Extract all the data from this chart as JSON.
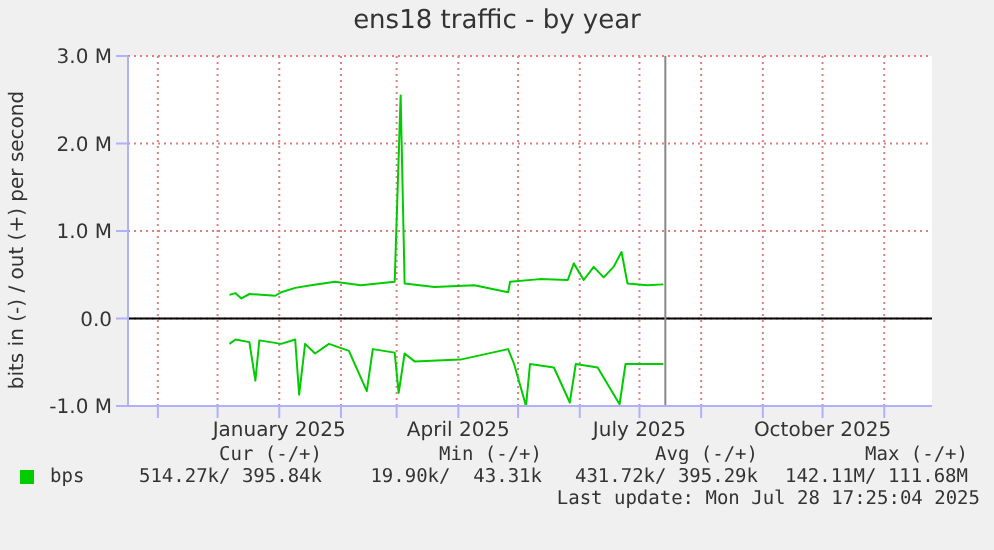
{
  "chart_data": {
    "type": "line",
    "title": "ens18 traffic - by year",
    "ylabel": "bits in (-) / out (+) per second",
    "xlim": [
      "2024-10-17",
      "2025-11-25"
    ],
    "xticks": [
      {
        "value": "2024-11-01",
        "label": null
      },
      {
        "value": "2024-12-01",
        "label": null
      },
      {
        "value": "2025-01-01",
        "label": "January 2025"
      },
      {
        "value": "2025-02-01",
        "label": null
      },
      {
        "value": "2025-03-01",
        "label": null
      },
      {
        "value": "2025-04-01",
        "label": "April 2025"
      },
      {
        "value": "2025-05-01",
        "label": null
      },
      {
        "value": "2025-06-01",
        "label": null
      },
      {
        "value": "2025-07-01",
        "label": "July 2025"
      },
      {
        "value": "2025-08-01",
        "label": null
      },
      {
        "value": "2025-09-01",
        "label": null
      },
      {
        "value": "2025-10-01",
        "label": "October 2025"
      },
      {
        "value": "2025-11-01",
        "label": null
      }
    ],
    "ylim": [
      -1000000,
      3000000
    ],
    "yticks": [
      {
        "value": -1000000,
        "label": "-1.0 M"
      },
      {
        "value": 0,
        "label": "0.0"
      },
      {
        "value": 1000000,
        "label": "1.0 M"
      },
      {
        "value": 2000000,
        "label": "2.0 M"
      },
      {
        "value": 3000000,
        "label": "3.0 M"
      }
    ],
    "grid": true,
    "legend": "bottom",
    "marker": "none",
    "line_style": "solid",
    "series": [
      {
        "name": "bps",
        "color": "#00cc00",
        "x": [
          "2024-12-07",
          "2024-12-10",
          "2024-12-13",
          "2024-12-17",
          "2024-12-30",
          "2025-01-02",
          "2025-01-09",
          "2025-01-17",
          "2025-01-29",
          "2025-02-11",
          "2025-02-28",
          "2025-03-03",
          "2025-03-05",
          "2025-03-20",
          "2025-04-09",
          "2025-04-26",
          "2025-04-27",
          "2025-05-12",
          "2025-05-26",
          "2025-05-29",
          "2025-06-03",
          "2025-06-08",
          "2025-06-13",
          "2025-06-18",
          "2025-06-22",
          "2025-06-25",
          "2025-07-05",
          "2025-07-13"
        ],
        "values": [
          270000,
          290000,
          230000,
          280000,
          260000,
          300000,
          350000,
          380000,
          420000,
          380000,
          420000,
          2550000,
          400000,
          360000,
          380000,
          300000,
          420000,
          450000,
          440000,
          630000,
          440000,
          590000,
          470000,
          590000,
          760000,
          400000,
          380000,
          390000
        ]
      },
      {
        "color": "#00cc00",
        "x": [
          "2024-12-07",
          "2024-12-10",
          "2024-12-17",
          "2024-12-20",
          "2024-12-22",
          "2025-01-02",
          "2025-01-09",
          "2025-01-11",
          "2025-01-14",
          "2025-01-19",
          "2025-01-26",
          "2025-02-05",
          "2025-02-14",
          "2025-02-17",
          "2025-02-28",
          "2025-03-02",
          "2025-03-05",
          "2025-03-10",
          "2025-04-02",
          "2025-04-26",
          "2025-04-29",
          "2025-05-05",
          "2025-05-07",
          "2025-05-19",
          "2025-05-27",
          "2025-05-30",
          "2025-06-10",
          "2025-06-21",
          "2025-06-24",
          "2025-07-13"
        ],
        "values": [
          -290000,
          -240000,
          -270000,
          -710000,
          -250000,
          -290000,
          -240000,
          -870000,
          -290000,
          -400000,
          -290000,
          -370000,
          -830000,
          -350000,
          -390000,
          -850000,
          -400000,
          -490000,
          -470000,
          -350000,
          -520000,
          -1000000,
          -520000,
          -560000,
          -960000,
          -520000,
          -560000,
          -980000,
          -520000,
          -520000
        ]
      }
    ],
    "ref_lines": [
      {
        "axis": "y",
        "value": 0,
        "color": "#000000"
      },
      {
        "axis": "x",
        "value": "2025-07-14",
        "color": "#888888"
      }
    ],
    "annotations": [
      "Cur (-/+)",
      "Min (-/+)",
      "Avg (-/+)",
      "Max (-/+)",
      "514.27k/ 395.84k",
      "19.90k/  43.31k",
      "431.72k/ 395.29k",
      "142.11M/ 111.68M",
      "Last update: Mon Jul 28 17:25:04 2025"
    ]
  }
}
